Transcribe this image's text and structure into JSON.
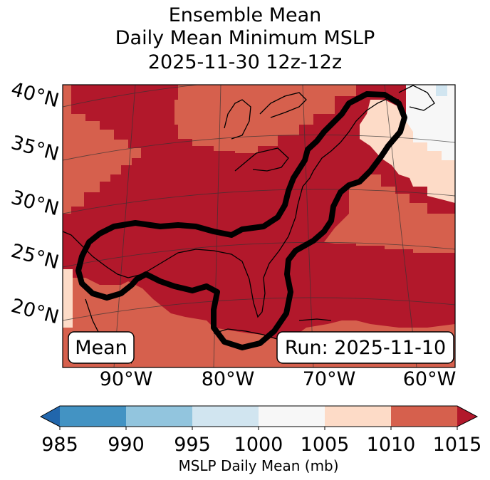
{
  "title": {
    "line1": "Ensemble Mean",
    "line2": "Daily Mean Minimum MSLP",
    "line3": "2025-11-30 12z-12z"
  },
  "map": {
    "lat_labels": [
      "40°N",
      "35°N",
      "30°N",
      "25°N",
      "20°N"
    ],
    "lon_labels": [
      "90°W",
      "80°W",
      "70°W",
      "60°W"
    ],
    "left_box_text": "Mean",
    "right_box_text": "Run: 2025-11-10",
    "colors": {
      "lt1010": "#d6604d",
      "lt1015": "#b2182b",
      "lt1005": "#fddbc7",
      "lt1000": "#f7f7f7",
      "lt995": "#d1e5f0",
      "outline": "#000000"
    }
  },
  "colorbar": {
    "label": "MSLP Daily Mean (mb)",
    "ticks": [
      "985",
      "990",
      "995",
      "1000",
      "1005",
      "1010",
      "1015"
    ],
    "bins": [
      {
        "range": "985-990",
        "color": "#4393c3"
      },
      {
        "range": "990-995",
        "color": "#92c5de"
      },
      {
        "range": "995-1000",
        "color": "#d1e5f0"
      },
      {
        "range": "1000-1005",
        "color": "#f7f7f7"
      },
      {
        "range": "1005-1010",
        "color": "#fddbc7"
      },
      {
        "range": "1010-1015",
        "color": "#d6604d"
      }
    ],
    "under_color": "#2166ac",
    "over_color": "#b2182b"
  }
}
